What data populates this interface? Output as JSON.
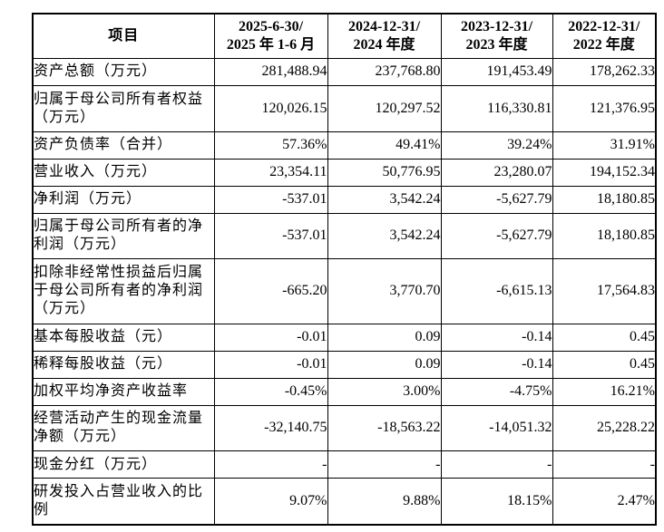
{
  "colors": {
    "background": "#ffffff",
    "border": "#000000",
    "text": "#000000"
  },
  "table": {
    "header": {
      "item_label": "项目",
      "periods": [
        {
          "line1": "2025-6-30/",
          "line2": "2025 年 1-6 月"
        },
        {
          "line1": "2024-12-31/",
          "line2": "2024 年度"
        },
        {
          "line1": "2023-12-31/",
          "line2": "2023 年度"
        },
        {
          "line1": "2022-12-31/",
          "line2": "2022 年度"
        }
      ]
    },
    "rows": [
      {
        "label": "资产总额（万元）",
        "values": [
          "281,488.94",
          "237,768.80",
          "191,453.49",
          "178,262.33"
        ]
      },
      {
        "label": "归属于母公司所有者权益（万元）",
        "values": [
          "120,026.15",
          "120,297.52",
          "116,330.81",
          "121,376.95"
        ]
      },
      {
        "label": "资产负债率（合并）",
        "values": [
          "57.36%",
          "49.41%",
          "39.24%",
          "31.91%"
        ]
      },
      {
        "label": "营业收入（万元）",
        "values": [
          "23,354.11",
          "50,776.95",
          "23,280.07",
          "194,152.34"
        ]
      },
      {
        "label": "净利润（万元）",
        "values": [
          "-537.01",
          "3,542.24",
          "-5,627.79",
          "18,180.85"
        ]
      },
      {
        "label": "归属于母公司所有者的净利润（万元）",
        "values": [
          "-537.01",
          "3,542.24",
          "-5,627.79",
          "18,180.85"
        ]
      },
      {
        "label": "扣除非经常性损益后归属于母公司所有者的净利润（万元）",
        "values": [
          "-665.20",
          "3,770.70",
          "-6,615.13",
          "17,564.83"
        ]
      },
      {
        "label": "基本每股收益（元）",
        "values": [
          "-0.01",
          "0.09",
          "-0.14",
          "0.45"
        ]
      },
      {
        "label": "稀释每股收益（元）",
        "values": [
          "-0.01",
          "0.09",
          "-0.14",
          "0.45"
        ]
      },
      {
        "label": "加权平均净资产收益率",
        "values": [
          "-0.45%",
          "3.00%",
          "-4.75%",
          "16.21%"
        ]
      },
      {
        "label": "经营活动产生的现金流量净额（万元）",
        "values": [
          "-32,140.75",
          "-18,563.22",
          "-14,051.32",
          "25,228.22"
        ]
      },
      {
        "label": "现金分红（万元）",
        "values": [
          "-",
          "-",
          "-",
          "-"
        ]
      },
      {
        "label": "研发投入占营业收入的比例",
        "values": [
          "9.07%",
          "9.88%",
          "18.15%",
          "2.47%"
        ]
      }
    ]
  }
}
